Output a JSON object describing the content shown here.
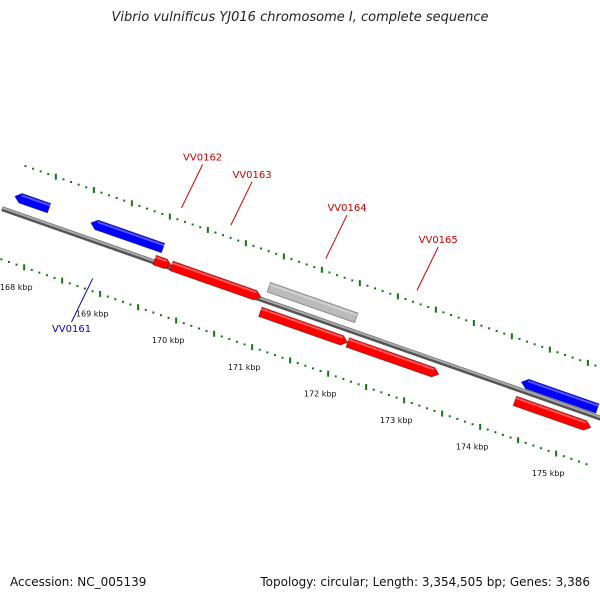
{
  "title": "Vibrio vulnificus YJ016 chromosome I, complete sequence",
  "footer": {
    "accession": "Accession: NC_005139",
    "summary": "Topology: circular; Length: 3,354,505 bp; Genes: 3,386"
  },
  "colors": {
    "forward_gene": "#ff0000",
    "reverse_gene": "#0000ff",
    "pseudo_gene": "#bbbbbb",
    "backbone": "#808080",
    "ticks": "#117711",
    "forward_label": "#cc0000",
    "reverse_label": "#0000cc"
  },
  "view": {
    "start_kbp": 167.6,
    "end_kbp": 175.3
  },
  "scale_labels": [
    {
      "kbp": 168,
      "text": "168 kbp"
    },
    {
      "kbp": 169,
      "text": "169 kbp"
    },
    {
      "kbp": 170,
      "text": "170 kbp"
    },
    {
      "kbp": 171,
      "text": "171 kbp"
    },
    {
      "kbp": 172,
      "text": "172 kbp"
    },
    {
      "kbp": 173,
      "text": "173 kbp"
    },
    {
      "kbp": 174,
      "text": "174 kbp"
    },
    {
      "kbp": 175,
      "text": "175 kbp"
    }
  ],
  "genes": [
    {
      "id": "g1",
      "start_kbp": 167.6,
      "end_kbp": 168.05,
      "strand": "reverse",
      "kind": "reverse"
    },
    {
      "id": "VV0161",
      "label": "VV0161",
      "start_kbp": 168.6,
      "end_kbp": 169.55,
      "strand": "reverse",
      "kind": "reverse",
      "label_kbp": 168.85
    },
    {
      "id": "VV0162",
      "label": "VV0162",
      "start_kbp": 169.5,
      "end_kbp": 169.72,
      "strand": "forward",
      "kind": "forward",
      "label_kbp": 169.6
    },
    {
      "id": "VV0163",
      "label": "VV0163",
      "start_kbp": 169.72,
      "end_kbp": 170.9,
      "strand": "forward",
      "kind": "forward",
      "label_kbp": 170.25
    },
    {
      "id": "VV0164",
      "label": "VV0164",
      "start_kbp": 170.95,
      "end_kbp": 172.1,
      "strand": "forward",
      "kind": "pseudo",
      "label_kbp": 171.5
    },
    {
      "id": "g6",
      "start_kbp": 170.95,
      "end_kbp": 172.1,
      "strand": "forward",
      "kind": "forward"
    },
    {
      "id": "VV0165",
      "label": "VV0165",
      "start_kbp": 172.1,
      "end_kbp": 173.3,
      "strand": "forward",
      "kind": "forward",
      "label_kbp": 172.7
    },
    {
      "id": "g8",
      "start_kbp": 174.3,
      "end_kbp": 175.3,
      "strand": "reverse",
      "kind": "reverse"
    },
    {
      "id": "g9",
      "start_kbp": 174.3,
      "end_kbp": 175.3,
      "strand": "forward",
      "kind": "forward"
    }
  ]
}
